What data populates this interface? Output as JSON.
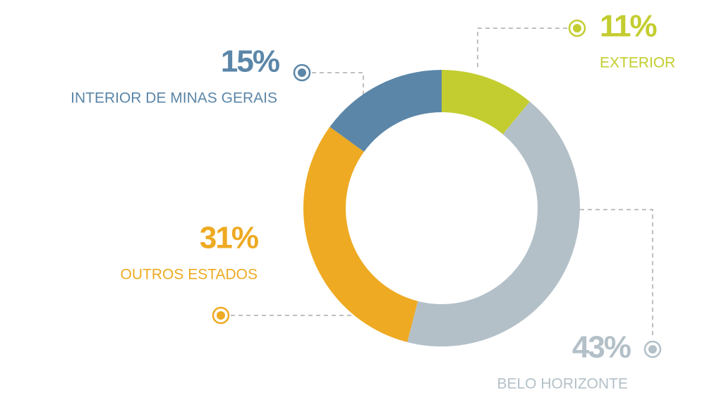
{
  "chart_data": {
    "type": "pie",
    "donut": true,
    "categories": [
      "EXTERIOR",
      "BELO HORIZONTE",
      "OUTROS ESTADOS",
      "INTERIOR DE MINAS GERAIS"
    ],
    "values": [
      11,
      43,
      31,
      15
    ],
    "value_labels": [
      "11%",
      "43%",
      "31%",
      "15%"
    ],
    "colors": [
      "#c3cd2f",
      "#b3c0c8",
      "#eeaa22",
      "#5b86a8"
    ]
  }
}
